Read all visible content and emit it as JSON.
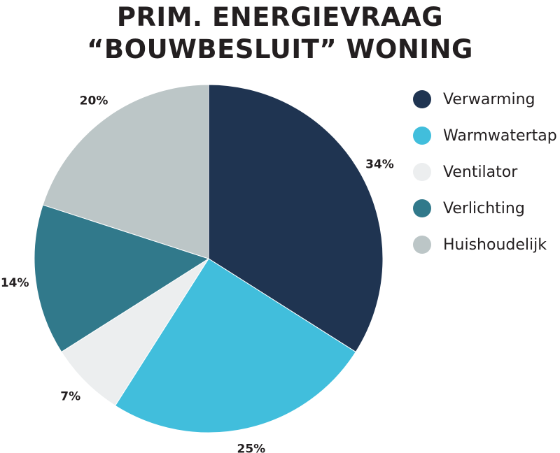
{
  "chart_data": {
    "type": "pie",
    "title_line1": "PRIM. ENERGIEVRAAG",
    "title_line2": "“BOUWBESLUIT” WONING",
    "legend_position": "right",
    "slices": [
      {
        "label": "Verwarming",
        "value": 34,
        "value_label": "34%",
        "color": "#1f3451"
      },
      {
        "label": "Warmwatertap",
        "value": 25,
        "value_label": "25%",
        "color": "#41bedc"
      },
      {
        "label": "Ventilator",
        "value": 7,
        "value_label": "7%",
        "color": "#eceeef"
      },
      {
        "label": "Verlichting",
        "value": 14,
        "value_label": "14%",
        "color": "#31798b"
      },
      {
        "label": "Huishoudelijk",
        "value": 20,
        "value_label": "20%",
        "color": "#bcc6c7"
      }
    ]
  }
}
